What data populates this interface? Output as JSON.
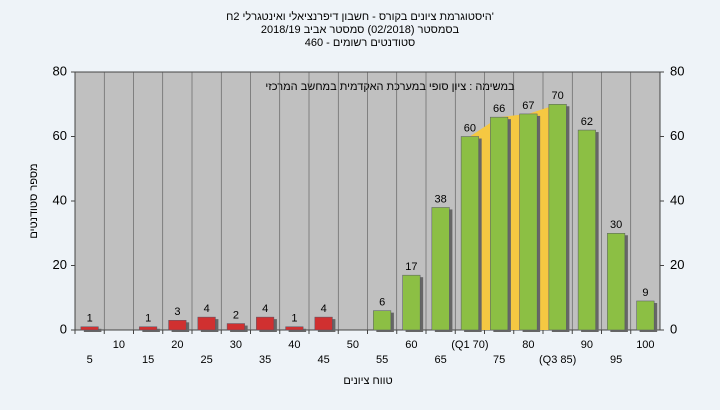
{
  "chart_data": {
    "type": "bar",
    "title_lines": [
      "'היסטוגרמת ציונים בקורס - חשבון דיפרנציאלי ואינטגרלי 2ח",
      "בסמסטר (02/2018)  סמסטר אביב 2018/19",
      "סטודנטים רשומים - 460"
    ],
    "annotation": "במשימה : ציון סופי במערכת האקדמית במחשב המרכזי",
    "ylabel": "מספר סטודנטים",
    "xlabel": "טווח ציונים",
    "categories": [
      "5",
      "10",
      "15",
      "20",
      "25",
      "30",
      "35",
      "40",
      "45",
      "50",
      "55",
      "60",
      "65",
      "(Q1 70)",
      "75",
      "80",
      "(Q3 85)",
      "90",
      "95",
      "100"
    ],
    "values": [
      1,
      0,
      1,
      3,
      4,
      2,
      4,
      1,
      4,
      0,
      6,
      17,
      38,
      60,
      66,
      67,
      70,
      62,
      30,
      9
    ],
    "colors": [
      "#d03030",
      "#d03030",
      "#d03030",
      "#d03030",
      "#d03030",
      "#d03030",
      "#d03030",
      "#d03030",
      "#d03030",
      "#d03030",
      "#8cbf44",
      "#8cbf44",
      "#8cbf44",
      "#8cbf44",
      "#8cbf44",
      "#8cbf44",
      "#8cbf44",
      "#8cbf44",
      "#8cbf44",
      "#8cbf44"
    ],
    "band_color": "#f5c842",
    "ylim": [
      0,
      80
    ],
    "yticks": [
      0,
      20,
      40,
      60,
      80
    ],
    "y2lim": [
      0,
      80
    ],
    "y2ticks": [
      0,
      20,
      40,
      60,
      80
    ],
    "grid": true
  }
}
